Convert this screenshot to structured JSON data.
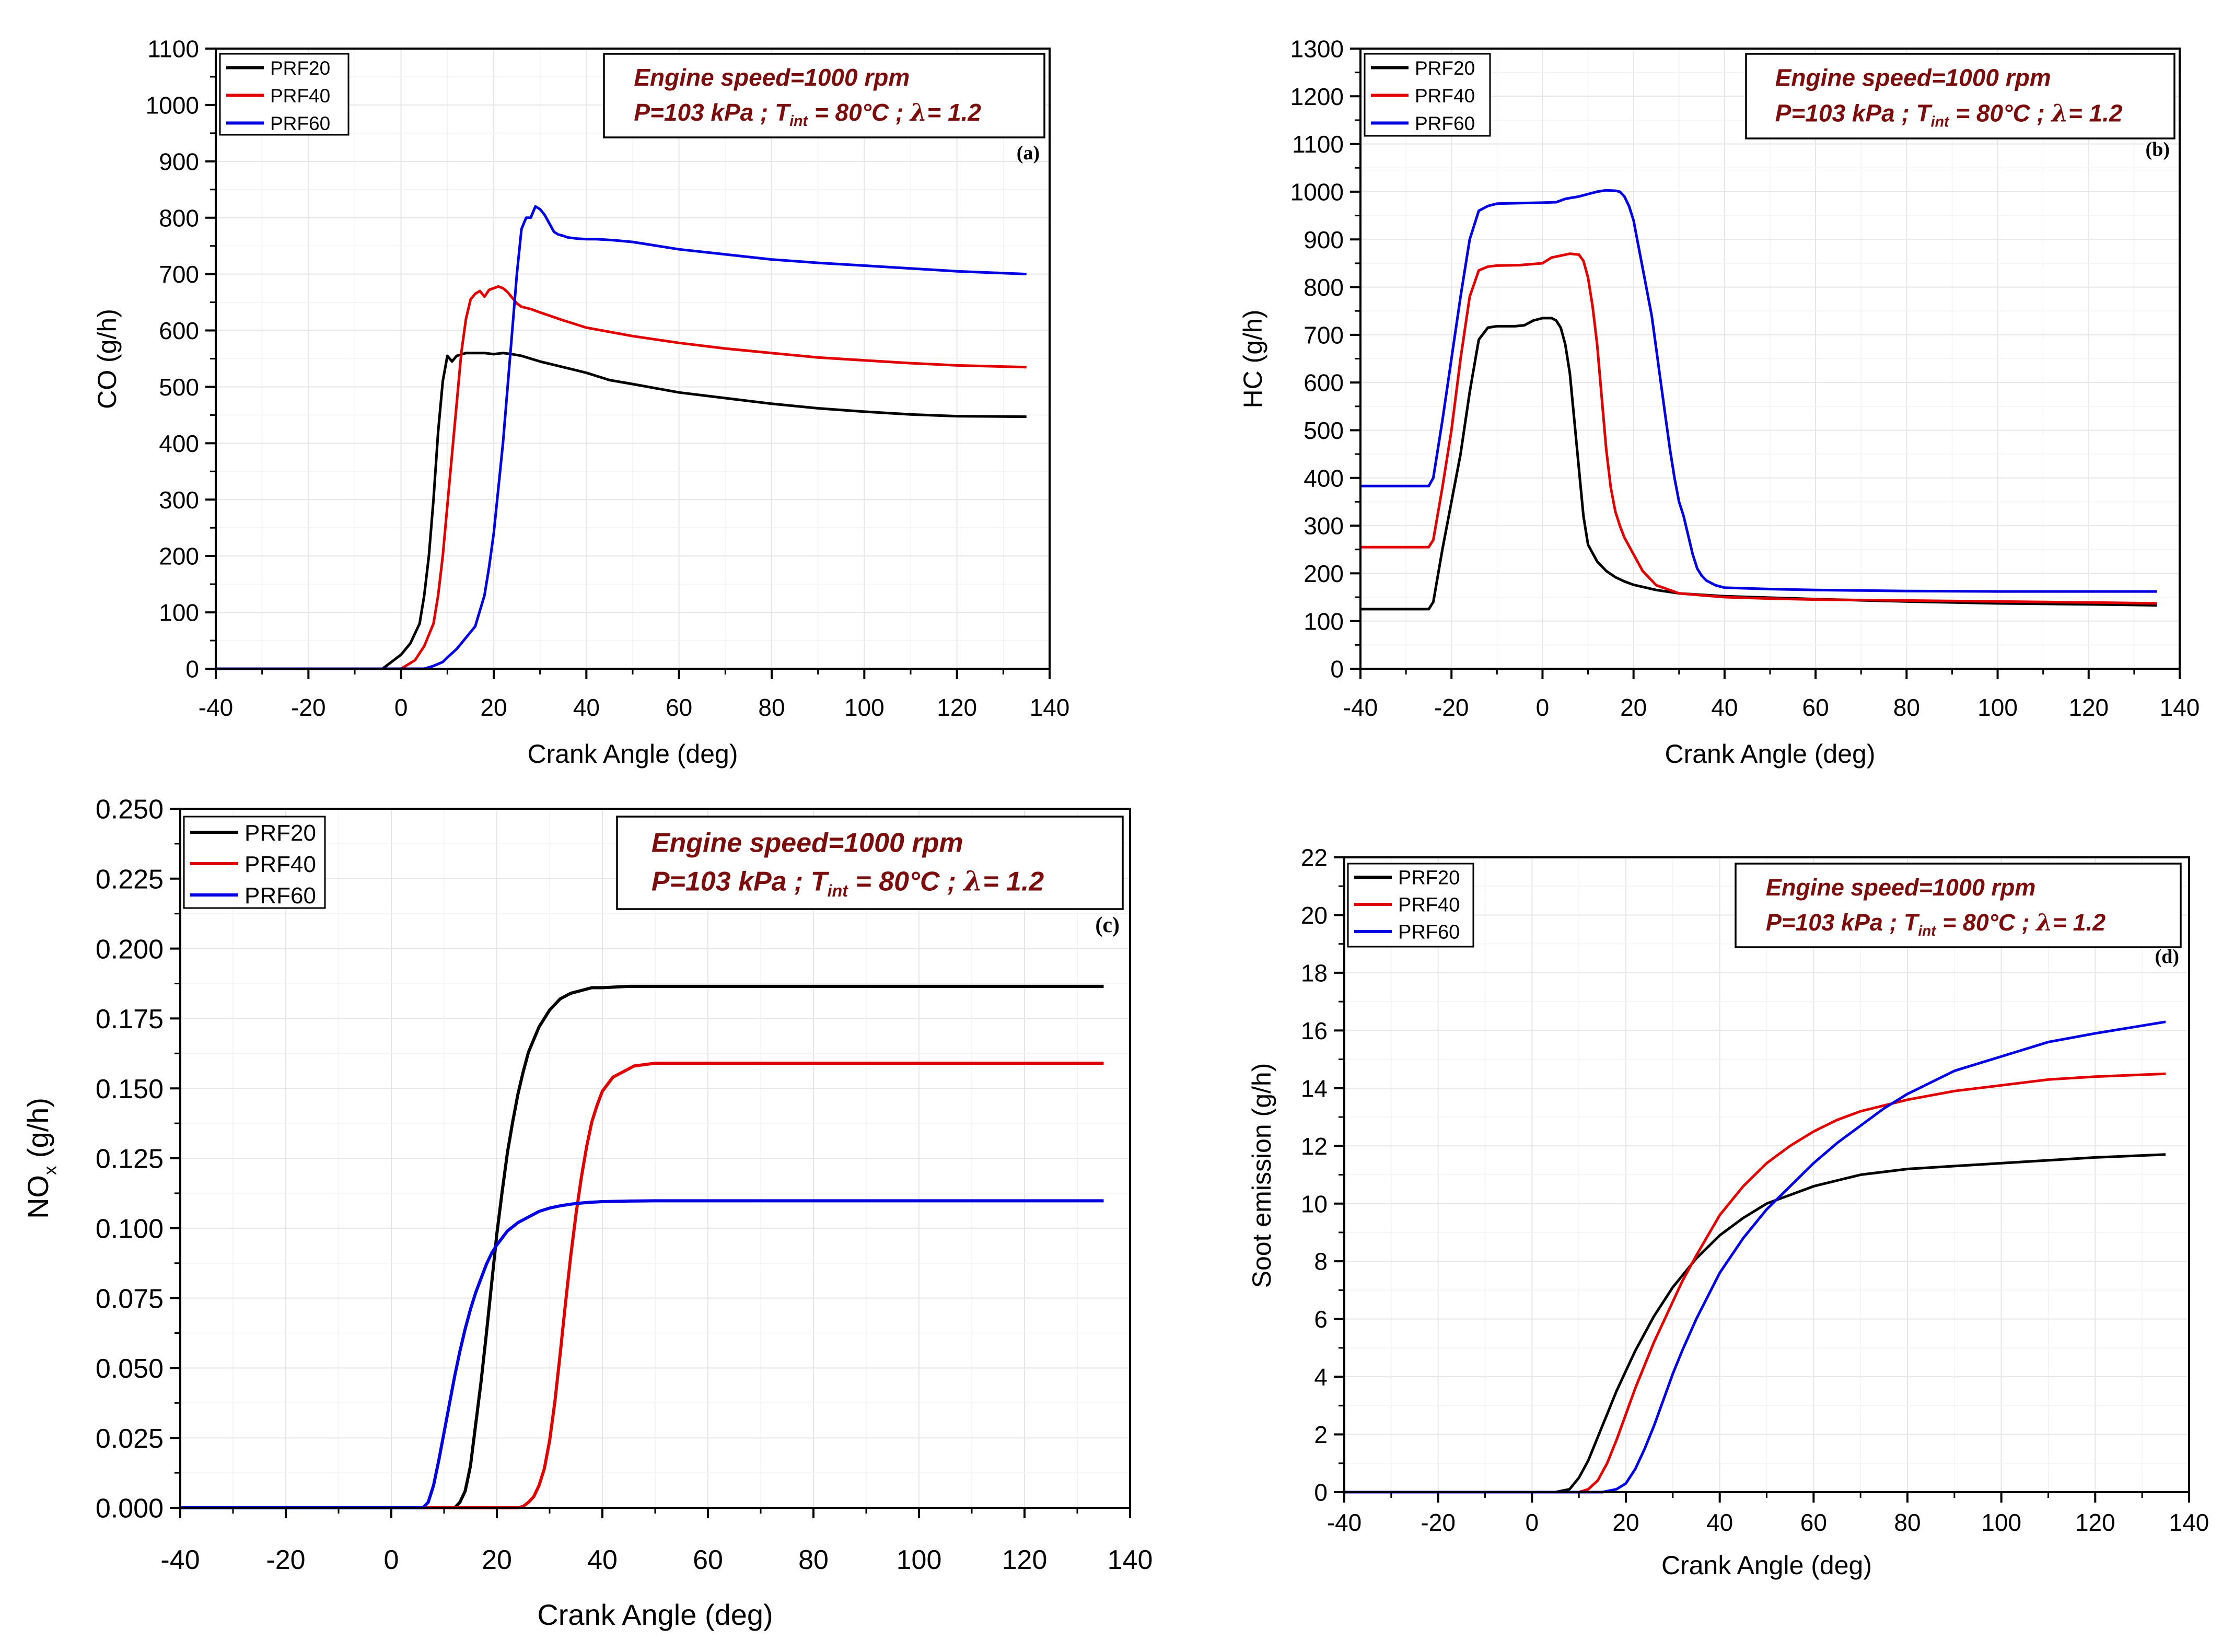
{
  "chart_data": [
    {
      "panel": "(a)",
      "type": "line",
      "xlabel": "Crank Angle (deg)",
      "ylabel": "CO (g/h)",
      "ylabel_sub": "",
      "xlim": [
        -40,
        140
      ],
      "ylim": [
        0,
        1100
      ],
      "xticks": [
        -40,
        -20,
        0,
        20,
        40,
        60,
        80,
        100,
        120,
        140
      ],
      "yticks": [
        0,
        100,
        200,
        300,
        400,
        500,
        600,
        700,
        800,
        900,
        1000,
        1100
      ],
      "ytick_labels": [
        "0",
        "100",
        "200",
        "300",
        "400",
        "500",
        "600",
        "700",
        "800",
        "900",
        "1000",
        "1100"
      ],
      "condition_line1": "Engine speed=1000 rpm",
      "condition_line2": {
        "pre": "P=103 kPa ; T",
        "sub": "int",
        "post": " = 80°C ; ",
        "greek": "λ",
        "tail": "= 1.2"
      },
      "legend": [
        "PRF20",
        "PRF40",
        "PRF60"
      ],
      "series": [
        {
          "name": "PRF20",
          "color": "#000000",
          "x": [
            -40,
            -4,
            0,
            2,
            4,
            5,
            6,
            7,
            8,
            9,
            10,
            11,
            12,
            14,
            16,
            18,
            20,
            22,
            24,
            26,
            28,
            30,
            35,
            40,
            45,
            50,
            60,
            70,
            80,
            90,
            100,
            110,
            120,
            135
          ],
          "y": [
            0,
            0,
            25,
            45,
            80,
            130,
            200,
            300,
            420,
            510,
            555,
            545,
            555,
            560,
            560,
            560,
            558,
            560,
            558,
            555,
            550,
            545,
            535,
            525,
            512,
            505,
            490,
            480,
            470,
            462,
            456,
            451,
            448,
            447
          ]
        },
        {
          "name": "PRF40",
          "color": "#e00000",
          "x": [
            -40,
            0,
            3,
            5,
            7,
            8,
            9,
            10,
            11,
            12,
            13,
            14,
            15,
            16,
            17,
            18,
            19,
            20,
            21,
            22,
            23,
            24,
            25,
            26,
            28,
            30,
            35,
            40,
            50,
            60,
            70,
            80,
            90,
            100,
            110,
            120,
            135
          ],
          "y": [
            0,
            0,
            15,
            40,
            80,
            130,
            200,
            290,
            380,
            470,
            560,
            620,
            655,
            665,
            670,
            660,
            672,
            675,
            678,
            675,
            668,
            658,
            648,
            642,
            638,
            632,
            618,
            605,
            590,
            578,
            568,
            560,
            552,
            547,
            542,
            538,
            535
          ]
        },
        {
          "name": "PRF60",
          "color": "#0000e0",
          "x": [
            -40,
            5,
            7,
            9,
            10,
            12,
            14,
            16,
            18,
            19,
            20,
            21,
            22,
            23,
            24,
            25,
            26,
            27,
            28,
            29,
            30,
            31,
            32,
            33,
            34,
            35,
            36,
            38,
            40,
            42,
            44,
            46,
            50,
            60,
            70,
            80,
            90,
            100,
            120,
            135
          ],
          "y": [
            0,
            0,
            5,
            12,
            20,
            35,
            55,
            75,
            130,
            180,
            240,
            320,
            400,
            500,
            600,
            700,
            780,
            800,
            800,
            820,
            815,
            805,
            790,
            775,
            770,
            768,
            765,
            763,
            762,
            762,
            761,
            760,
            757,
            744,
            735,
            726,
            720,
            715,
            705,
            700
          ]
        }
      ]
    },
    {
      "panel": "(b)",
      "type": "line",
      "xlabel": "Crank Angle (deg)",
      "ylabel": "HC (g/h)",
      "ylabel_sub": "",
      "xlim": [
        -40,
        140
      ],
      "ylim": [
        0,
        1300
      ],
      "xticks": [
        -40,
        -20,
        0,
        20,
        40,
        60,
        80,
        100,
        120,
        140
      ],
      "yticks": [
        0,
        100,
        200,
        300,
        400,
        500,
        600,
        700,
        800,
        900,
        1000,
        1100,
        1200,
        1300
      ],
      "ytick_labels": [
        "0",
        "100",
        "200",
        "300",
        "400",
        "500",
        "600",
        "700",
        "800",
        "900",
        "1000",
        "1100",
        "1200",
        "1300"
      ],
      "condition_line1": "Engine speed=1000 rpm",
      "condition_line2": {
        "pre": "P=103 kPa ; T",
        "sub": "int",
        "post": " = 80°C ; ",
        "greek": "λ",
        "tail": "= 1.2"
      },
      "legend": [
        "PRF20",
        "PRF40",
        "PRF60"
      ],
      "series": [
        {
          "name": "PRF20",
          "color": "#000000",
          "x": [
            -40,
            -25,
            -24,
            -22,
            -20,
            -18,
            -16,
            -14,
            -12,
            -10,
            -8,
            -6,
            -4,
            -2,
            0,
            2,
            3,
            4,
            5,
            6,
            7,
            8,
            9,
            10,
            12,
            14,
            16,
            18,
            20,
            25,
            30,
            40,
            50,
            60,
            80,
            100,
            120,
            135
          ],
          "y": [
            125,
            125,
            140,
            250,
            350,
            450,
            580,
            690,
            715,
            718,
            718,
            718,
            720,
            730,
            735,
            735,
            730,
            715,
            680,
            620,
            520,
            420,
            320,
            260,
            225,
            205,
            192,
            183,
            176,
            165,
            158,
            152,
            149,
            146,
            141,
            137,
            135,
            133
          ]
        },
        {
          "name": "PRF40",
          "color": "#e00000",
          "x": [
            -40,
            -25,
            -24,
            -22,
            -20,
            -18,
            -16,
            -14,
            -12,
            -10,
            -5,
            0,
            2,
            4,
            6,
            8,
            9,
            10,
            11,
            12,
            13,
            14,
            15,
            16,
            17,
            18,
            20,
            22,
            25,
            30,
            40,
            50,
            60,
            80,
            100,
            120,
            135
          ],
          "y": [
            255,
            255,
            270,
            380,
            500,
            650,
            780,
            835,
            843,
            845,
            846,
            850,
            862,
            866,
            870,
            868,
            855,
            820,
            760,
            680,
            570,
            460,
            380,
            330,
            300,
            275,
            240,
            205,
            175,
            158,
            150,
            147,
            145,
            143,
            141,
            139,
            137
          ]
        },
        {
          "name": "PRF60",
          "color": "#0000e0",
          "x": [
            -40,
            -25,
            -24,
            -22,
            -20,
            -18,
            -16,
            -14,
            -12,
            -10,
            -5,
            0,
            3,
            5,
            8,
            10,
            12,
            14,
            16,
            17,
            18,
            19,
            20,
            21,
            22,
            23,
            24,
            25,
            26,
            27,
            28,
            29,
            30,
            31,
            32,
            33,
            34,
            35,
            36,
            38,
            40,
            50,
            60,
            80,
            100,
            120,
            135
          ],
          "y": [
            383,
            383,
            400,
            520,
            650,
            780,
            900,
            960,
            970,
            975,
            976,
            977,
            978,
            985,
            990,
            995,
            1000,
            1003,
            1002,
            1000,
            990,
            970,
            940,
            890,
            840,
            790,
            740,
            670,
            600,
            530,
            460,
            400,
            350,
            320,
            280,
            240,
            210,
            195,
            185,
            175,
            170,
            167,
            165,
            163,
            162,
            162,
            162
          ]
        }
      ]
    },
    {
      "panel": "(c)",
      "type": "line",
      "xlabel": "Crank Angle (deg)",
      "ylabel": "NO",
      "ylabel_sub": "x",
      "ylabel_tail": " (g/h)",
      "xlim": [
        -40,
        140
      ],
      "ylim": [
        0,
        0.25
      ],
      "xticks": [
        -40,
        -20,
        0,
        20,
        40,
        60,
        80,
        100,
        120,
        140
      ],
      "yticks": [
        0,
        0.025,
        0.05,
        0.075,
        0.1,
        0.125,
        0.15,
        0.175,
        0.2,
        0.225,
        0.25
      ],
      "ytick_labels": [
        "0.000",
        "0.025",
        "0.050",
        "0.075",
        "0.100",
        "0.125",
        "0.150",
        "0.175",
        "0.200",
        "0.225",
        "0.250"
      ],
      "condition_line1": "Engine speed=1000 rpm",
      "condition_line2": {
        "pre": "P=103 kPa ; T",
        "sub": "int",
        "post": " = 80°C ; ",
        "greek": "λ",
        "tail": "= 1.2"
      },
      "legend": [
        "PRF20",
        "PRF40",
        "PRF60"
      ],
      "series": [
        {
          "name": "PRF20",
          "color": "#000000",
          "x": [
            -40,
            12,
            13,
            14,
            15,
            16,
            17,
            18,
            19,
            20,
            21,
            22,
            23,
            24,
            25,
            26,
            28,
            30,
            32,
            34,
            36,
            38,
            40,
            45,
            50,
            60,
            80,
            100,
            120,
            135
          ],
          "y": [
            0,
            0,
            0.002,
            0.006,
            0.015,
            0.03,
            0.045,
            0.062,
            0.08,
            0.098,
            0.113,
            0.127,
            0.138,
            0.148,
            0.156,
            0.163,
            0.172,
            0.178,
            0.182,
            0.184,
            0.185,
            0.186,
            0.186,
            0.1865,
            0.1865,
            0.1865,
            0.1865,
            0.1865,
            0.1865,
            0.1865
          ]
        },
        {
          "name": "PRF40",
          "color": "#e00000",
          "x": [
            -40,
            24,
            25,
            26,
            27,
            28,
            29,
            30,
            31,
            32,
            33,
            34,
            35,
            36,
            37,
            38,
            39,
            40,
            42,
            44,
            46,
            48,
            50,
            55,
            60,
            80,
            100,
            120,
            135
          ],
          "y": [
            0,
            0,
            0.0005,
            0.002,
            0.004,
            0.008,
            0.014,
            0.024,
            0.038,
            0.055,
            0.073,
            0.09,
            0.105,
            0.118,
            0.129,
            0.138,
            0.144,
            0.149,
            0.154,
            0.156,
            0.158,
            0.1585,
            0.159,
            0.159,
            0.159,
            0.159,
            0.159,
            0.159,
            0.159
          ]
        },
        {
          "name": "PRF60",
          "color": "#0000e0",
          "x": [
            -40,
            6,
            7,
            8,
            9,
            10,
            11,
            12,
            13,
            14,
            15,
            16,
            17,
            18,
            19,
            20,
            22,
            24,
            26,
            28,
            30,
            32,
            34,
            36,
            38,
            40,
            45,
            50,
            60,
            80,
            100,
            120,
            135
          ],
          "y": [
            0,
            0,
            0.002,
            0.008,
            0.017,
            0.027,
            0.037,
            0.047,
            0.056,
            0.064,
            0.071,
            0.077,
            0.082,
            0.087,
            0.091,
            0.094,
            0.099,
            0.102,
            0.104,
            0.106,
            0.1072,
            0.108,
            0.1086,
            0.109,
            0.1093,
            0.1095,
            0.1097,
            0.1098,
            0.1098,
            0.1098,
            0.1098,
            0.1098,
            0.1098
          ]
        }
      ]
    },
    {
      "panel": "(d)",
      "type": "line",
      "xlabel": "Crank Angle (deg)",
      "ylabel": "Soot emission (g/h)",
      "ylabel_sub": "",
      "xlim": [
        -40,
        140
      ],
      "ylim": [
        0,
        22
      ],
      "xticks": [
        -40,
        -20,
        0,
        20,
        40,
        60,
        80,
        100,
        120,
        140
      ],
      "yticks": [
        0,
        2,
        4,
        6,
        8,
        10,
        12,
        14,
        16,
        18,
        20,
        22
      ],
      "ytick_labels": [
        "0",
        "2",
        "4",
        "6",
        "8",
        "10",
        "12",
        "14",
        "16",
        "18",
        "20",
        "22"
      ],
      "condition_line1": "Engine speed=1000 rpm",
      "condition_line2": {
        "pre": "P=103 kPa ; T",
        "sub": "int",
        "post": " = 80°C ; ",
        "greek": "λ",
        "tail": "= 1.2"
      },
      "legend": [
        "PRF20",
        "PRF40",
        "PRF60"
      ],
      "series": [
        {
          "name": "PRF20",
          "color": "#000000",
          "x": [
            -40,
            5,
            8,
            10,
            12,
            14,
            16,
            18,
            20,
            22,
            24,
            26,
            28,
            30,
            32,
            35,
            40,
            45,
            50,
            55,
            60,
            70,
            80,
            90,
            100,
            110,
            120,
            135
          ],
          "y": [
            0,
            0,
            0.1,
            0.5,
            1.1,
            1.9,
            2.7,
            3.5,
            4.2,
            4.9,
            5.5,
            6.1,
            6.6,
            7.1,
            7.5,
            8.1,
            8.9,
            9.5,
            10.0,
            10.3,
            10.6,
            11.0,
            11.2,
            11.3,
            11.4,
            11.5,
            11.6,
            11.7
          ]
        },
        {
          "name": "PRF40",
          "color": "#e00000",
          "x": [
            -40,
            10,
            12,
            14,
            16,
            18,
            20,
            22,
            24,
            26,
            28,
            30,
            32,
            35,
            40,
            45,
            50,
            55,
            60,
            65,
            70,
            80,
            90,
            100,
            110,
            120,
            135
          ],
          "y": [
            0,
            0,
            0.1,
            0.4,
            1.0,
            1.8,
            2.7,
            3.6,
            4.4,
            5.2,
            5.9,
            6.6,
            7.3,
            8.2,
            9.6,
            10.6,
            11.4,
            12.0,
            12.5,
            12.9,
            13.2,
            13.6,
            13.9,
            14.1,
            14.3,
            14.4,
            14.5
          ]
        },
        {
          "name": "PRF60",
          "color": "#0000e0",
          "x": [
            -40,
            15,
            18,
            20,
            22,
            24,
            26,
            28,
            30,
            32,
            35,
            40,
            45,
            50,
            55,
            60,
            65,
            70,
            75,
            80,
            90,
            100,
            110,
            120,
            135
          ],
          "y": [
            0,
            0,
            0.1,
            0.3,
            0.8,
            1.5,
            2.3,
            3.2,
            4.1,
            4.9,
            6.0,
            7.6,
            8.8,
            9.8,
            10.6,
            11.4,
            12.1,
            12.7,
            13.3,
            13.8,
            14.6,
            15.1,
            15.6,
            15.9,
            16.3
          ]
        }
      ]
    }
  ]
}
